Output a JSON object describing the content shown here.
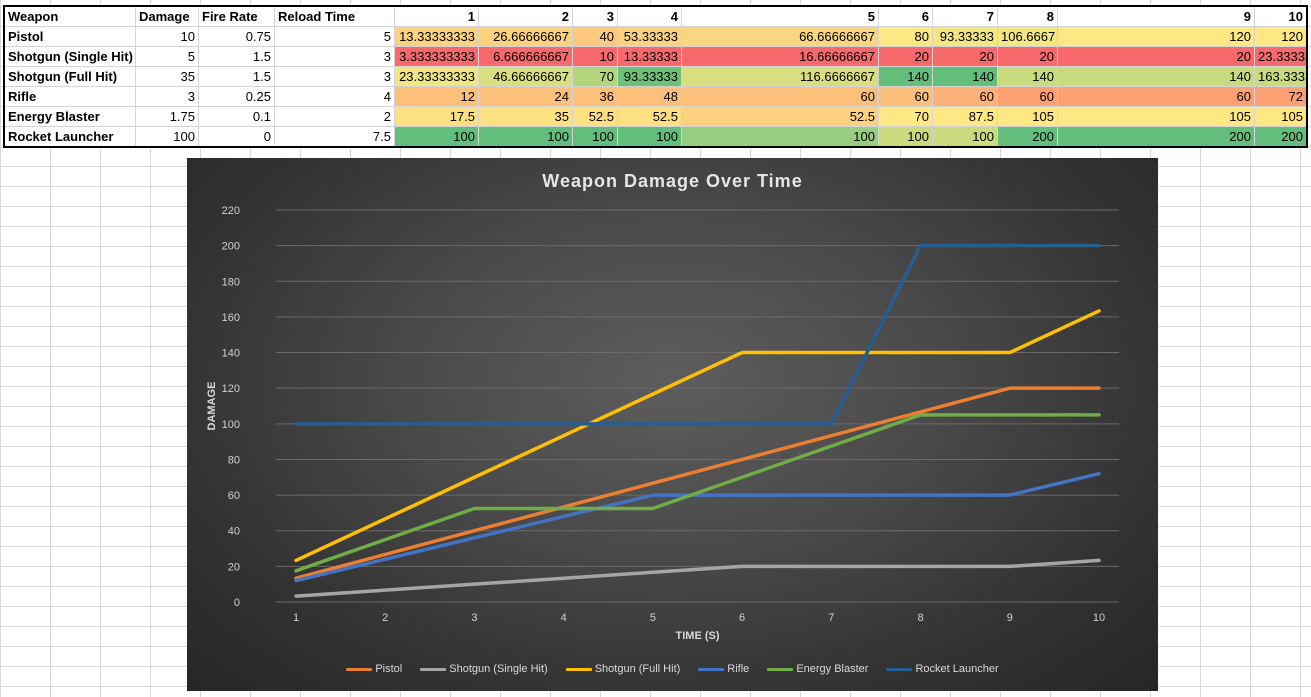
{
  "sheet": {
    "headers": [
      "Weapon",
      "Damage",
      "Fire Rate",
      "Reload Time",
      "1",
      "2",
      "3",
      "4",
      "5",
      "6",
      "7",
      "8",
      "9",
      "10"
    ],
    "rows": [
      {
        "name": "Pistol",
        "damage": "10",
        "fire_rate": "0.75",
        "reload": "5",
        "cells": [
          "13.33333333",
          "26.66666667",
          "40",
          "53.33333",
          "66.66666667",
          "80",
          "93.33333",
          "106.6667",
          "120",
          "120"
        ],
        "colors": [
          "#fcd17f",
          "#fcd17f",
          "#fcc87d",
          "#fcd17f",
          "#fad680",
          "#ffe884",
          "#f3e783",
          "#f3e783",
          "#ffe884",
          "#ffe884"
        ]
      },
      {
        "name": "Shotgun (Single Hit)",
        "damage": "5",
        "fire_rate": "1.5",
        "reload": "3",
        "cells": [
          "3.333333333",
          "6.666666667",
          "10",
          "13.33333",
          "16.66666667",
          "20",
          "20",
          "20",
          "20",
          "23.33333333"
        ],
        "colors": [
          "#f8696b",
          "#f8696b",
          "#f8696b",
          "#f8696b",
          "#f8696b",
          "#f8696b",
          "#f8696b",
          "#f8696b",
          "#f8696b",
          "#f8696b"
        ]
      },
      {
        "name": "Shotgun (Full Hit)",
        "damage": "35",
        "fire_rate": "1.5",
        "reload": "3",
        "cells": [
          "23.33333333",
          "46.66666667",
          "70",
          "93.33333",
          "116.6666667",
          "140",
          "140",
          "140",
          "140",
          "163.3333333"
        ],
        "colors": [
          "#f1e683",
          "#d9df81",
          "#b3d57d",
          "#6cc077",
          "#d9df81",
          "#63be7b",
          "#63be7b",
          "#c9da7f",
          "#c9da7f",
          "#c9da7f"
        ]
      },
      {
        "name": "Rifle",
        "damage": "3",
        "fire_rate": "0.25",
        "reload": "4",
        "cells": [
          "12",
          "24",
          "36",
          "48",
          "60",
          "60",
          "60",
          "60",
          "60",
          "72"
        ],
        "colors": [
          "#fcc07b",
          "#fcc07b",
          "#fcc07b",
          "#fcc07b",
          "#fcc07b",
          "#fcbf7b",
          "#fdb179",
          "#fca074",
          "#fca074",
          "#fca074"
        ]
      },
      {
        "name": "Energy Blaster",
        "damage": "1.75",
        "fire_rate": "0.1",
        "reload": "2",
        "cells": [
          "17.5",
          "35",
          "52.5",
          "52.5",
          "52.5",
          "70",
          "87.5",
          "105",
          "105",
          "105"
        ],
        "colors": [
          "#fde082",
          "#fde082",
          "#fde082",
          "#fde082",
          "#fcd17f",
          "#ffe884",
          "#ffe884",
          "#ffe884",
          "#ffe884",
          "#ffe884"
        ]
      },
      {
        "name": "Rocket Launcher",
        "damage": "100",
        "fire_rate": "0",
        "reload": "7.5",
        "cells": [
          "100",
          "100",
          "100",
          "100",
          "100",
          "100",
          "100",
          "200",
          "200",
          "200"
        ],
        "colors": [
          "#63be7b",
          "#63be7b",
          "#63be7b",
          "#63be7b",
          "#98ce7f",
          "#c9da7f",
          "#c9da7f",
          "#63be7b",
          "#63be7b",
          "#63be7b"
        ]
      }
    ]
  },
  "chart_data": {
    "type": "line",
    "title": "Weapon Damage Over Time",
    "xlabel": "TIME (S)",
    "ylabel": "DAMAGE",
    "x": [
      1,
      2,
      3,
      4,
      5,
      6,
      7,
      8,
      9,
      10
    ],
    "ylim": [
      0,
      220
    ],
    "yticks": [
      0,
      20,
      40,
      60,
      80,
      100,
      120,
      140,
      160,
      180,
      200,
      220
    ],
    "grid": true,
    "legend_position": "bottom",
    "series": [
      {
        "name": "Pistol",
        "color": "#ed7d31",
        "values": [
          13.33,
          26.67,
          40,
          53.33,
          66.67,
          80,
          93.33,
          106.67,
          120,
          120
        ]
      },
      {
        "name": "Shotgun (Single Hit)",
        "color": "#a5a5a5",
        "values": [
          3.33,
          6.67,
          10,
          13.33,
          16.67,
          20,
          20,
          20,
          20,
          23.33
        ]
      },
      {
        "name": "Shotgun (Full Hit)",
        "color": "#ffc000",
        "values": [
          23.33,
          46.67,
          70,
          93.33,
          116.67,
          140,
          140,
          140,
          140,
          163.33
        ]
      },
      {
        "name": "Rifle",
        "color": "#4472c4",
        "values": [
          12,
          24,
          36,
          48,
          60,
          60,
          60,
          60,
          60,
          72
        ]
      },
      {
        "name": "Energy Blaster",
        "color": "#70ad47",
        "values": [
          17.5,
          35,
          52.5,
          52.5,
          52.5,
          70,
          87.5,
          105,
          105,
          105
        ]
      },
      {
        "name": "Rocket Launcher",
        "color": "#255e91",
        "values": [
          100,
          100,
          100,
          100,
          100,
          100,
          100,
          200,
          200,
          200
        ]
      }
    ]
  }
}
